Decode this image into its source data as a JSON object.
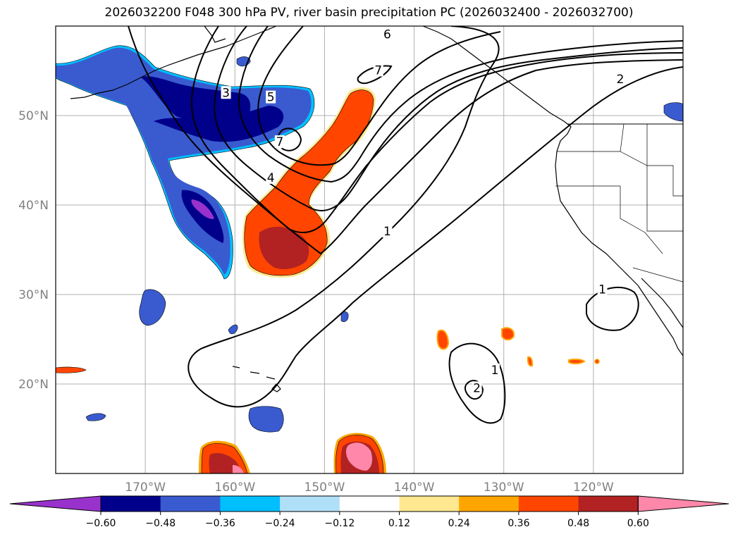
{
  "title": "2026032200 F048 300 hPa PV, river basin precipitation PC (2026032400 - 2026032700)",
  "map": {
    "lon_range": [
      -180,
      -110
    ],
    "lat_range": [
      10,
      60
    ],
    "gridlines": true,
    "lat_ticks": [
      {
        "lat": 50,
        "label": "50°N"
      },
      {
        "lat": 40,
        "label": "40°N"
      },
      {
        "lat": 30,
        "label": "30°N"
      },
      {
        "lat": 20,
        "label": "20°N"
      }
    ],
    "lon_ticks": [
      {
        "lon": -170,
        "label": "170°W"
      },
      {
        "lon": -160,
        "label": "160°W"
      },
      {
        "lon": -150,
        "label": "150°W"
      },
      {
        "lon": -140,
        "label": "140°W"
      },
      {
        "lon": -130,
        "label": "130°W"
      },
      {
        "lon": -120,
        "label": "120°W"
      }
    ],
    "contour_labels": [
      {
        "text": "6",
        "lon": -143,
        "lat": 59
      },
      {
        "text": "7",
        "lon": -144,
        "lat": 55
      },
      {
        "text": "3",
        "lon": -161,
        "lat": 52.5
      },
      {
        "text": "5",
        "lon": -156,
        "lat": 52
      },
      {
        "text": "7",
        "lon": -155,
        "lat": 47
      },
      {
        "text": "4",
        "lon": -156,
        "lat": 43
      },
      {
        "text": "2",
        "lon": -117,
        "lat": 54
      },
      {
        "text": "1",
        "lon": -143,
        "lat": 37
      },
      {
        "text": "1",
        "lon": -119,
        "lat": 30.5
      },
      {
        "text": "1",
        "lon": -131,
        "lat": 21.5
      },
      {
        "text": "2",
        "lon": -133,
        "lat": 19.5
      }
    ]
  },
  "colorbar": {
    "colors": [
      "#9932cc",
      "#00008b",
      "#3a5bcf",
      "#00bfff",
      "#b0e0f8",
      "#ffffff",
      "#ffe88f",
      "#ffa500",
      "#ff4500",
      "#b22222",
      "#ff88aa"
    ],
    "tick_labels": [
      "−0.60",
      "−0.48",
      "−0.36",
      "−0.24",
      "−0.12",
      "0.12",
      "0.24",
      "0.36",
      "0.48",
      "0.60"
    ]
  }
}
